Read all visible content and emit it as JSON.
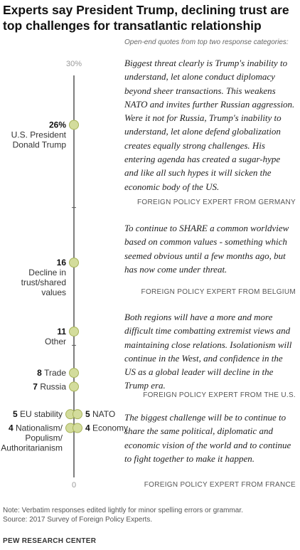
{
  "title": "Experts say President Trump, declining trust are top challenges for transatlantic relationship",
  "subtitle_note": "Open-end quotes from top two response categories:",
  "chart_data": {
    "type": "scatter",
    "axis": {
      "min": 0,
      "max": 30,
      "min_label": "0",
      "max_label": "30%"
    },
    "points": [
      {
        "value": 26,
        "label_value": "26%",
        "label": "U.S. President Donald Trump",
        "label_lines": [
          "U.S. President",
          "Donald Trump"
        ],
        "side": "left"
      },
      {
        "value": 16,
        "label_value": "16",
        "label": "Decline in trust/shared values",
        "label_lines": [
          "Decline in",
          "trust/shared",
          "values"
        ],
        "side": "left"
      },
      {
        "value": 11,
        "label_value": "11",
        "label": "Other",
        "label_lines": [
          "Other"
        ],
        "side": "left"
      },
      {
        "value": 8,
        "label_value": "8",
        "label": "Trade",
        "label_lines": [],
        "side": "left"
      },
      {
        "value": 7,
        "label_value": "7",
        "label": "Russia",
        "label_lines": [],
        "side": "left"
      },
      {
        "value": 5,
        "label_value": "5",
        "label": "EU stability",
        "label_lines": [],
        "side": "left"
      },
      {
        "value": 5,
        "label_value": "5",
        "label": "NATO",
        "label_lines": [],
        "side": "right"
      },
      {
        "value": 4,
        "label_value": "4",
        "label": "Nationalism/Populism/Authoritarianism",
        "label_lines": [
          "Populism/",
          "Authoritarianism"
        ],
        "side": "left"
      },
      {
        "value": 4,
        "label_value": "4",
        "label": "Economy",
        "label_lines": [],
        "side": "right"
      }
    ],
    "colors": {
      "dot_fill": "#d3dc9c",
      "dot_stroke": "#a7b35a",
      "axis": "#555555"
    }
  },
  "quotes": [
    {
      "text": "Biggest threat clearly is Trump's inability to understand, let alone conduct diplomacy beyond sheer transactions. This weakens NATO and invites further Russian aggression. Were it not for Russia, Trump's inability to understand, let alone defend globalization creates equally strong challenges. His entering agenda has created a sugar-hype and like all such hypes it will sicken the economic body of the US.",
      "source": "FOREIGN POLICY EXPERT FROM GERMANY"
    },
    {
      "text": "To continue to SHARE a common worldview based on common values - something which seemed obvious until a few months ago, but has now come under threat.",
      "source": "FOREIGN POLICY EXPERT FROM BELGIUM"
    },
    {
      "text": "Both regions will have a more and more difficult time combatting extremist views and maintaining close relations. Isolationism will continue in the West, and confidence in the US as a global leader will decline in the Trump era.",
      "source": "FOREIGN POLICY EXPERT FROM THE U.S."
    },
    {
      "text": "The biggest challenge will be to continue to share the same political, diplomatic and economic vision of the world and to continue to fight together to make it happen.",
      "source": "FOREIGN POLICY EXPERT FROM FRANCE"
    }
  ],
  "note_line1": "Note: Verbatim responses edited lightly for minor spelling errors or grammar.",
  "note_line2": "Source: 2017 Survey of Foreign Policy Experts.",
  "brand": "PEW RESEARCH CENTER"
}
